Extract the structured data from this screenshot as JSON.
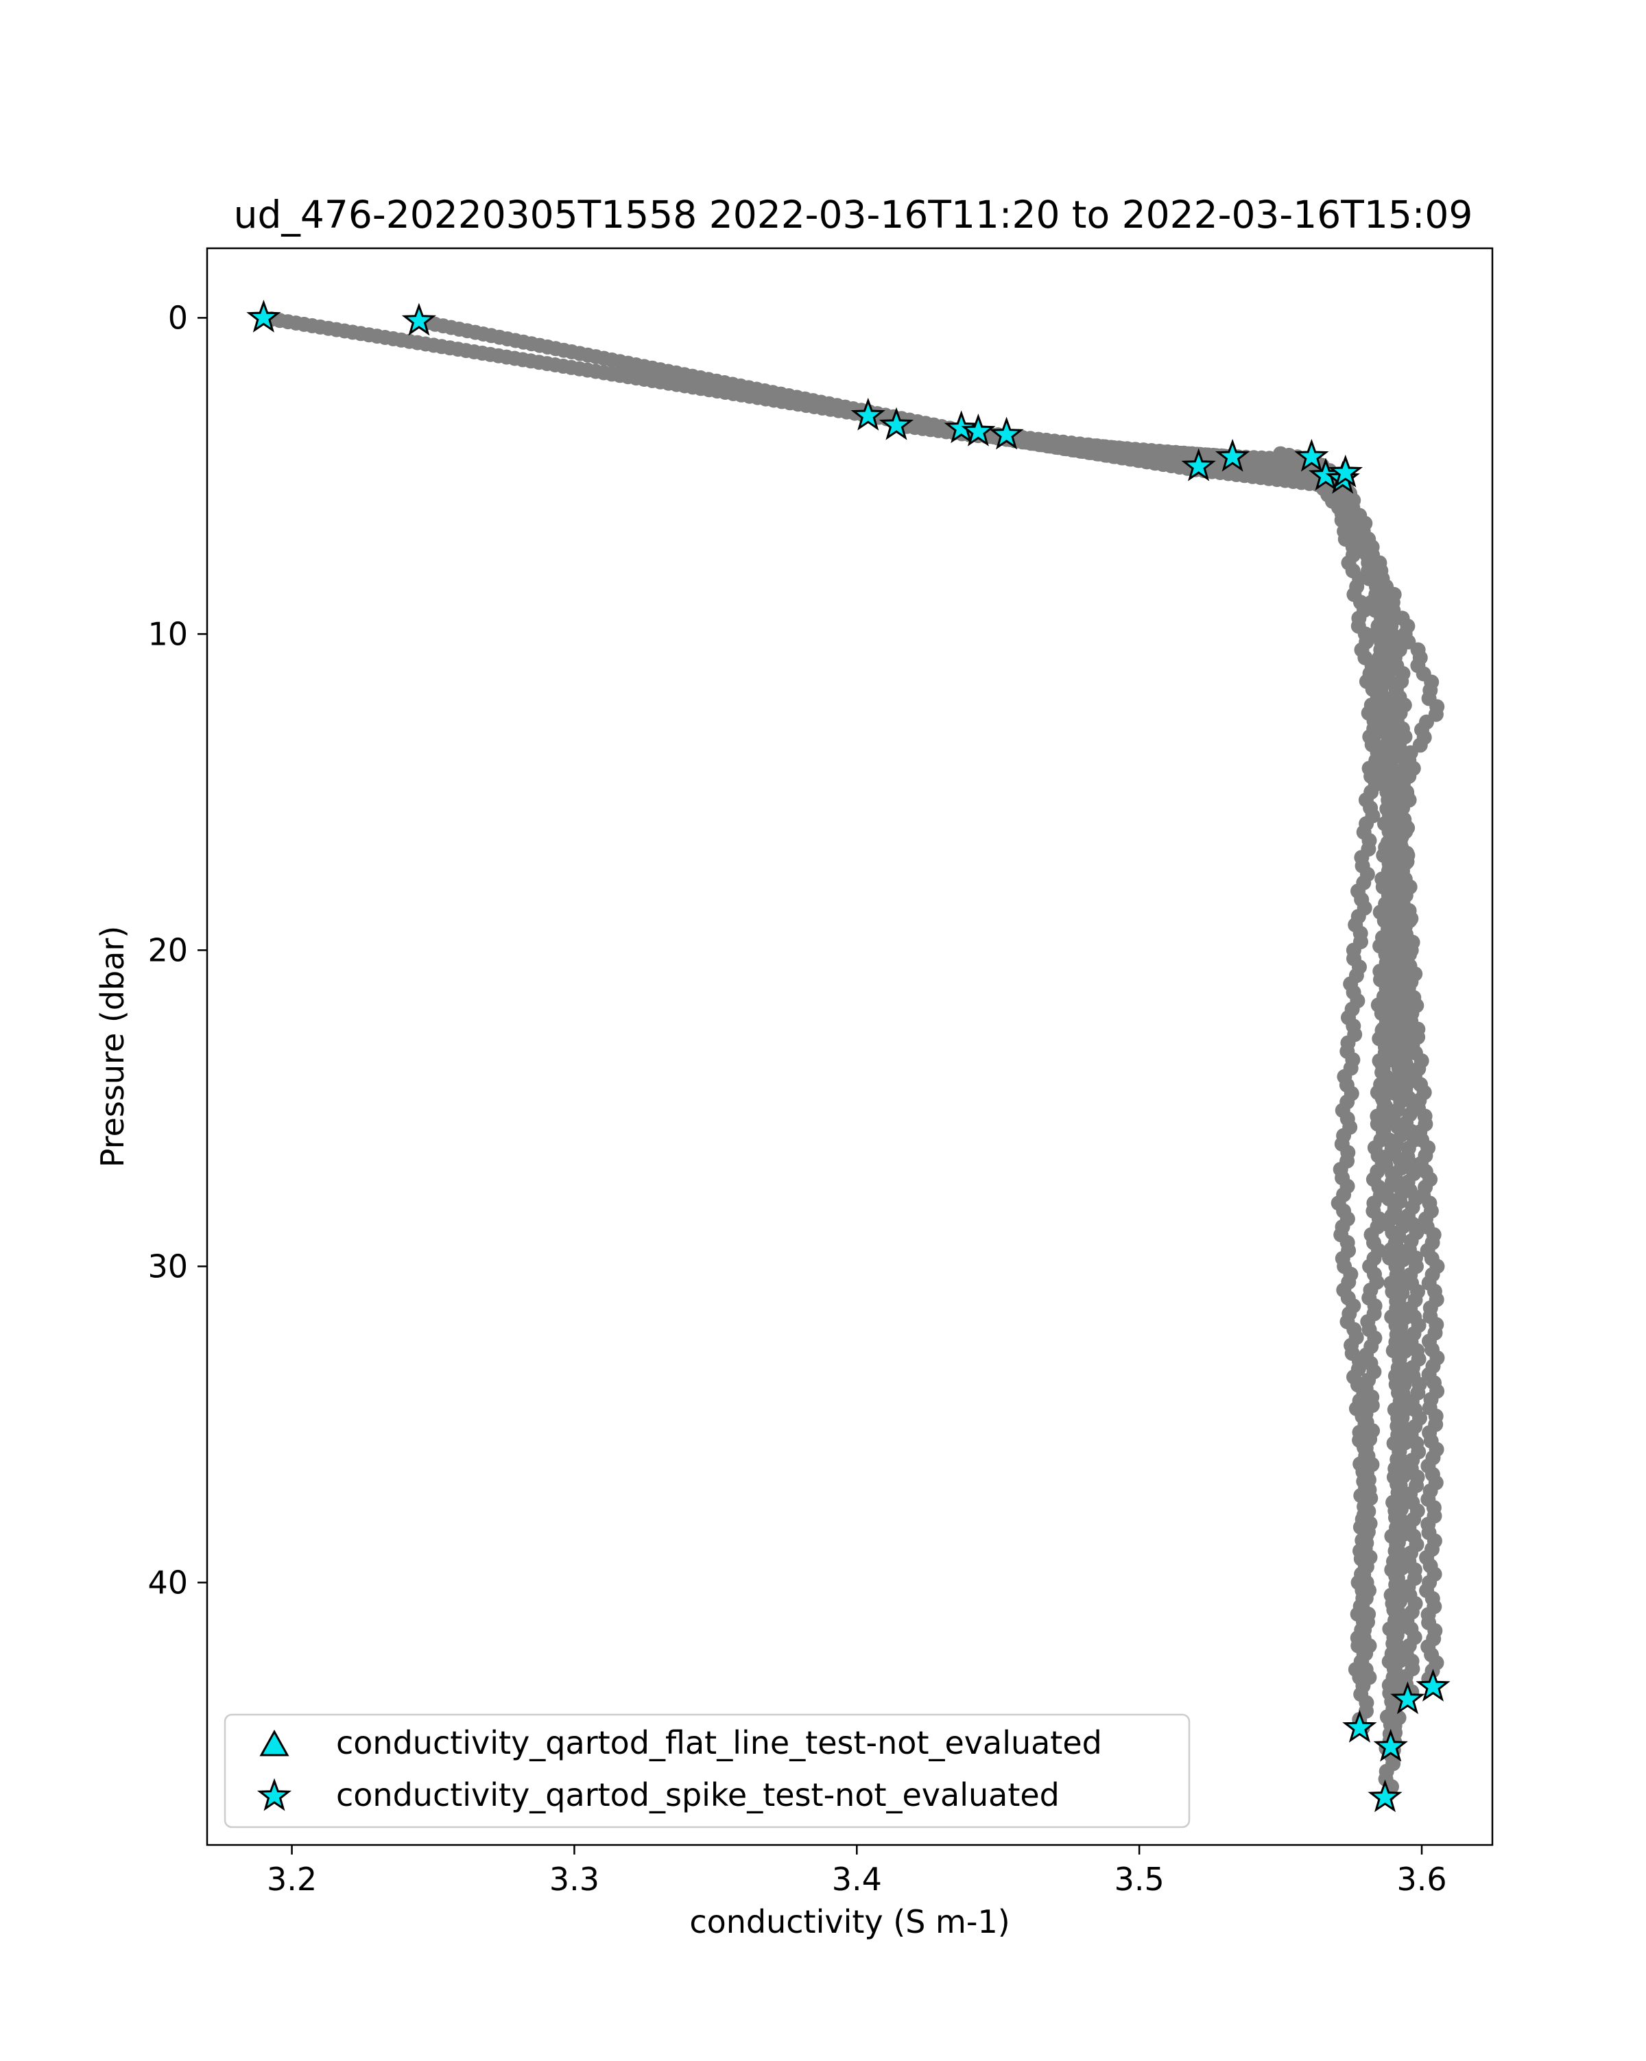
{
  "chart_data": {
    "type": "line",
    "title": "ud_476-20220305T1558 2022-03-16T11:20 to 2022-03-16T15:09",
    "xlabel": "conductivity (S m-1)",
    "ylabel": "Pressure (dbar)",
    "xlim": [
      3.17,
      3.625
    ],
    "ylim": [
      48.3,
      -2.2
    ],
    "y_inverted": true,
    "xticks": [
      3.2,
      3.3,
      3.4,
      3.5,
      3.6
    ],
    "xtick_labels": [
      "3.2",
      "3.3",
      "3.4",
      "3.5",
      "3.6"
    ],
    "yticks": [
      0,
      10,
      20,
      30,
      40
    ],
    "ytick_labels": [
      "0",
      "10",
      "20",
      "30",
      "40"
    ],
    "grid": false,
    "legend_position": "lower-left",
    "colors": {
      "profile": "#808080",
      "marker_fill": "#00e5ee",
      "marker_edge": "#000000"
    },
    "series": [
      {
        "x": [
          3.19,
          3.405,
          3.43,
          3.47,
          3.5,
          3.535,
          3.56,
          3.568,
          3.572,
          3.574,
          3.576,
          3.578,
          3.579,
          3.581,
          3.583,
          3.582,
          3.585,
          3.589,
          3.591,
          3.592,
          3.59,
          3.588,
          3.586,
          3.585,
          3.584,
          3.583,
          3.582,
          3.581,
          3.58,
          3.58,
          3.579
        ],
        "y": [
          0,
          3.1,
          3.5,
          3.9,
          4.2,
          4.4,
          4.5,
          5.0,
          6.0,
          7.0,
          8.0,
          9.0,
          10.0,
          11.0,
          12.0,
          13.0,
          14.0,
          15.0,
          16.0,
          18.0,
          20.0,
          22.0,
          24.0,
          26.0,
          28.0,
          30.0,
          32.0,
          36.0,
          40.0,
          43.0,
          44.6
        ]
      },
      {
        "x": [
          3.245,
          3.45,
          3.52,
          3.565,
          3.574,
          3.58,
          3.585,
          3.59,
          3.6,
          3.605,
          3.596,
          3.593,
          3.595,
          3.597,
          3.6,
          3.602,
          3.604,
          3.604,
          3.603,
          3.604
        ],
        "y": [
          0.1,
          3.8,
          4.8,
          5.2,
          6.0,
          7.0,
          8.0,
          9.0,
          11.0,
          12.3,
          14.0,
          16.0,
          19.0,
          22.0,
          25.0,
          28.0,
          30.0,
          35.0,
          40.0,
          43.3
        ]
      },
      {
        "x": [
          3.415,
          3.44,
          3.49,
          3.533,
          3.572,
          3.577,
          3.58,
          3.583,
          3.586,
          3.587,
          3.585,
          3.583,
          3.581,
          3.577,
          3.574,
          3.572,
          3.574,
          3.578,
          3.58,
          3.579,
          3.578
        ],
        "y": [
          3.4,
          3.7,
          4.1,
          4.4,
          5.1,
          6.0,
          7.0,
          8.0,
          9.0,
          10.0,
          12.0,
          14.0,
          16.0,
          20.0,
          24.0,
          28.0,
          31.0,
          34.0,
          37.0,
          40.0,
          43.0
        ]
      },
      {
        "x": [
          3.437,
          3.52,
          3.566,
          3.575,
          3.58,
          3.586,
          3.588,
          3.59,
          3.589,
          3.587,
          3.586,
          3.588,
          3.59,
          3.592,
          3.591,
          3.59,
          3.589,
          3.588
        ],
        "y": [
          3.6,
          4.8,
          5.3,
          6.0,
          7.0,
          8.5,
          10.0,
          12.0,
          15.0,
          18.0,
          22.0,
          26.0,
          30.0,
          34.0,
          38.0,
          42.0,
          45.0,
          46.7
        ]
      },
      {
        "x": [
          3.453,
          3.53,
          3.562,
          3.57,
          3.578,
          3.584,
          3.588,
          3.592,
          3.593,
          3.594,
          3.595,
          3.596,
          3.597,
          3.598,
          3.597,
          3.596,
          3.595
        ],
        "y": [
          3.8,
          4.6,
          5.0,
          6.0,
          7.0,
          8.0,
          9.0,
          11.0,
          14.0,
          18.0,
          22.0,
          26.0,
          30.0,
          34.0,
          38.0,
          42.0,
          43.7
        ]
      },
      {
        "x": [
          3.55,
          3.562,
          3.57,
          3.574,
          3.578,
          3.582,
          3.585,
          3.587,
          3.589,
          3.59,
          3.591,
          3.592,
          3.593,
          3.592,
          3.591,
          3.59
        ],
        "y": [
          4.3,
          4.5,
          5.0,
          6.0,
          7.0,
          8.0,
          10.0,
          12.0,
          15.0,
          19.0,
          24.0,
          29.0,
          34.0,
          39.0,
          43.0,
          45.3
        ]
      }
    ],
    "flagged_series": [
      {
        "name": "conductivity_qartod_flat_line_test-not_evaluated",
        "marker": "triangle",
        "x": [],
        "y": []
      },
      {
        "name": "conductivity_qartod_spike_test-not_evaluated",
        "marker": "star",
        "x": [
          3.19,
          3.245,
          3.404,
          3.414,
          3.437,
          3.443,
          3.453,
          3.521,
          3.533,
          3.561,
          3.566,
          3.572,
          3.573,
          3.604,
          3.595,
          3.578,
          3.589,
          3.587
        ],
        "y": [
          0.0,
          0.1,
          3.1,
          3.4,
          3.5,
          3.6,
          3.7,
          4.7,
          4.4,
          4.4,
          5.0,
          5.1,
          4.9,
          43.3,
          43.7,
          44.6,
          45.2,
          46.8
        ]
      }
    ]
  }
}
